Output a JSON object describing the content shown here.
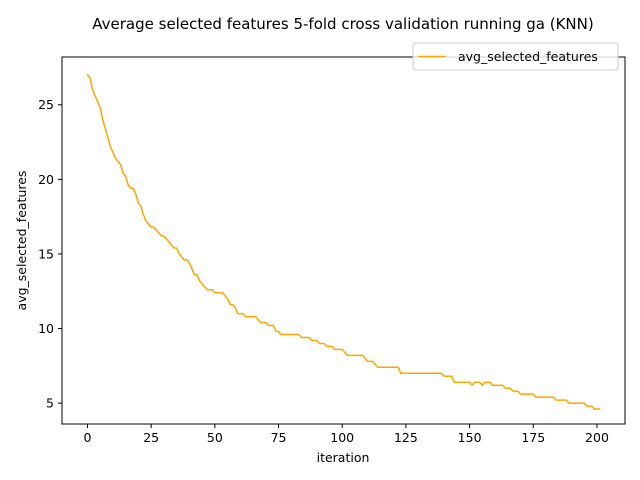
{
  "chart_data": {
    "type": "line",
    "title": "Average selected features 5-fold cross validation running ga (KNN)",
    "xlabel": "iteration",
    "ylabel": "avg_selected_features",
    "xlim": [
      -10,
      211
    ],
    "ylim": [
      3.6,
      28.2
    ],
    "xticks": [
      "0",
      "25",
      "50",
      "75",
      "100",
      "125",
      "150",
      "175",
      "200"
    ],
    "yticks": [
      "5",
      "10",
      "15",
      "20",
      "25"
    ],
    "grid": false,
    "legend_position": "top-right",
    "series": [
      {
        "name": "avg_selected_features",
        "color": "#ffa500",
        "x": [
          0,
          1,
          2,
          3,
          4,
          5,
          6,
          7,
          8,
          9,
          10,
          11,
          12,
          13,
          14,
          15,
          16,
          17,
          18,
          19,
          20,
          21,
          22,
          23,
          24,
          25,
          26,
          27,
          28,
          29,
          30,
          31,
          32,
          33,
          34,
          35,
          36,
          37,
          38,
          39,
          40,
          41,
          42,
          43,
          44,
          45,
          46,
          47,
          48,
          49,
          50,
          51,
          52,
          53,
          54,
          55,
          56,
          57,
          58,
          59,
          60,
          61,
          62,
          63,
          64,
          65,
          66,
          67,
          68,
          69,
          70,
          71,
          72,
          73,
          74,
          75,
          76,
          77,
          78,
          79,
          80,
          81,
          82,
          83,
          84,
          85,
          86,
          87,
          88,
          89,
          90,
          91,
          92,
          93,
          94,
          95,
          96,
          97,
          98,
          99,
          100,
          101,
          102,
          103,
          104,
          105,
          106,
          107,
          108,
          109,
          110,
          111,
          112,
          113,
          114,
          115,
          116,
          117,
          118,
          119,
          120,
          121,
          122,
          123,
          124,
          125,
          126,
          127,
          128,
          129,
          130,
          131,
          132,
          133,
          134,
          135,
          136,
          137,
          138,
          139,
          140,
          141,
          142,
          143,
          144,
          145,
          146,
          147,
          148,
          149,
          150,
          151,
          152,
          153,
          154,
          155,
          156,
          157,
          158,
          159,
          160,
          161,
          162,
          163,
          164,
          165,
          166,
          167,
          168,
          169,
          170,
          171,
          172,
          173,
          174,
          175,
          176,
          177,
          178,
          179,
          180,
          181,
          182,
          183,
          184,
          185,
          186,
          187,
          188,
          189,
          190,
          191,
          192,
          193,
          194,
          195,
          196,
          197,
          198,
          199,
          200,
          201
        ],
        "values": [
          27.0,
          26.8,
          26.0,
          25.6,
          25.2,
          24.8,
          24.0,
          23.4,
          22.8,
          22.2,
          21.8,
          21.4,
          21.2,
          21.0,
          20.4,
          20.2,
          19.6,
          19.4,
          19.4,
          19.0,
          18.4,
          18.2,
          17.6,
          17.2,
          17.0,
          16.8,
          16.8,
          16.6,
          16.4,
          16.2,
          16.2,
          16.0,
          15.8,
          15.6,
          15.4,
          15.4,
          15.0,
          14.8,
          14.6,
          14.6,
          14.4,
          14.0,
          13.6,
          13.6,
          13.2,
          13.0,
          12.8,
          12.6,
          12.6,
          12.6,
          12.4,
          12.4,
          12.4,
          12.4,
          12.2,
          12.0,
          11.6,
          11.6,
          11.4,
          11.0,
          11.0,
          11.0,
          10.8,
          10.8,
          10.8,
          10.8,
          10.8,
          10.6,
          10.4,
          10.4,
          10.4,
          10.2,
          10.2,
          10.2,
          9.8,
          9.8,
          9.6,
          9.6,
          9.6,
          9.6,
          9.6,
          9.6,
          9.6,
          9.6,
          9.4,
          9.4,
          9.4,
          9.4,
          9.2,
          9.2,
          9.2,
          9.0,
          9.0,
          9.0,
          8.8,
          8.8,
          8.8,
          8.6,
          8.6,
          8.6,
          8.6,
          8.4,
          8.2,
          8.2,
          8.2,
          8.2,
          8.2,
          8.2,
          8.2,
          8.0,
          7.8,
          7.8,
          7.8,
          7.6,
          7.4,
          7.4,
          7.4,
          7.4,
          7.4,
          7.4,
          7.4,
          7.4,
          7.4,
          7.0,
          7.0,
          7.0,
          7.0,
          7.0,
          7.0,
          7.0,
          7.0,
          7.0,
          7.0,
          7.0,
          7.0,
          7.0,
          7.0,
          7.0,
          7.0,
          7.0,
          6.8,
          6.8,
          6.8,
          6.8,
          6.4,
          6.4,
          6.4,
          6.4,
          6.4,
          6.4,
          6.4,
          6.2,
          6.4,
          6.4,
          6.4,
          6.2,
          6.4,
          6.4,
          6.4,
          6.2,
          6.2,
          6.2,
          6.2,
          6.2,
          6.0,
          6.0,
          6.0,
          5.8,
          5.8,
          5.8,
          5.6,
          5.6,
          5.6,
          5.6,
          5.6,
          5.6,
          5.4,
          5.4,
          5.4,
          5.4,
          5.4,
          5.4,
          5.4,
          5.4,
          5.2,
          5.2,
          5.2,
          5.2,
          5.2,
          5.0,
          5.0,
          5.0,
          5.0,
          5.0,
          5.0,
          5.0,
          4.8,
          4.8,
          4.8,
          4.6,
          4.6,
          4.6
        ]
      }
    ]
  }
}
